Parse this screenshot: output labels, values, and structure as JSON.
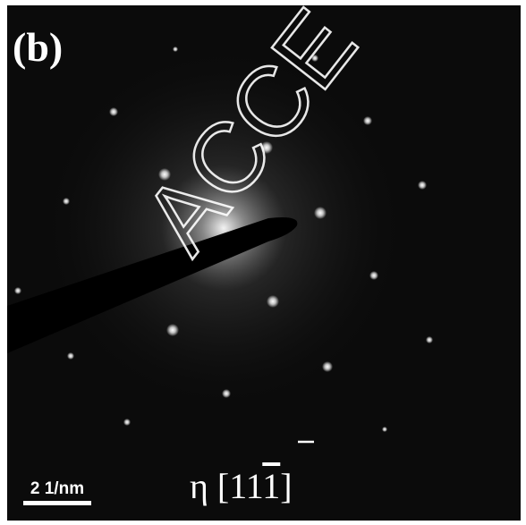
{
  "panel_label": "(b)",
  "watermark": "ACCE",
  "scale_bar_label": "2 1/nm",
  "zone_axis": {
    "prefix": "η [11",
    "overlined": "1",
    "suffix": "]"
  }
}
